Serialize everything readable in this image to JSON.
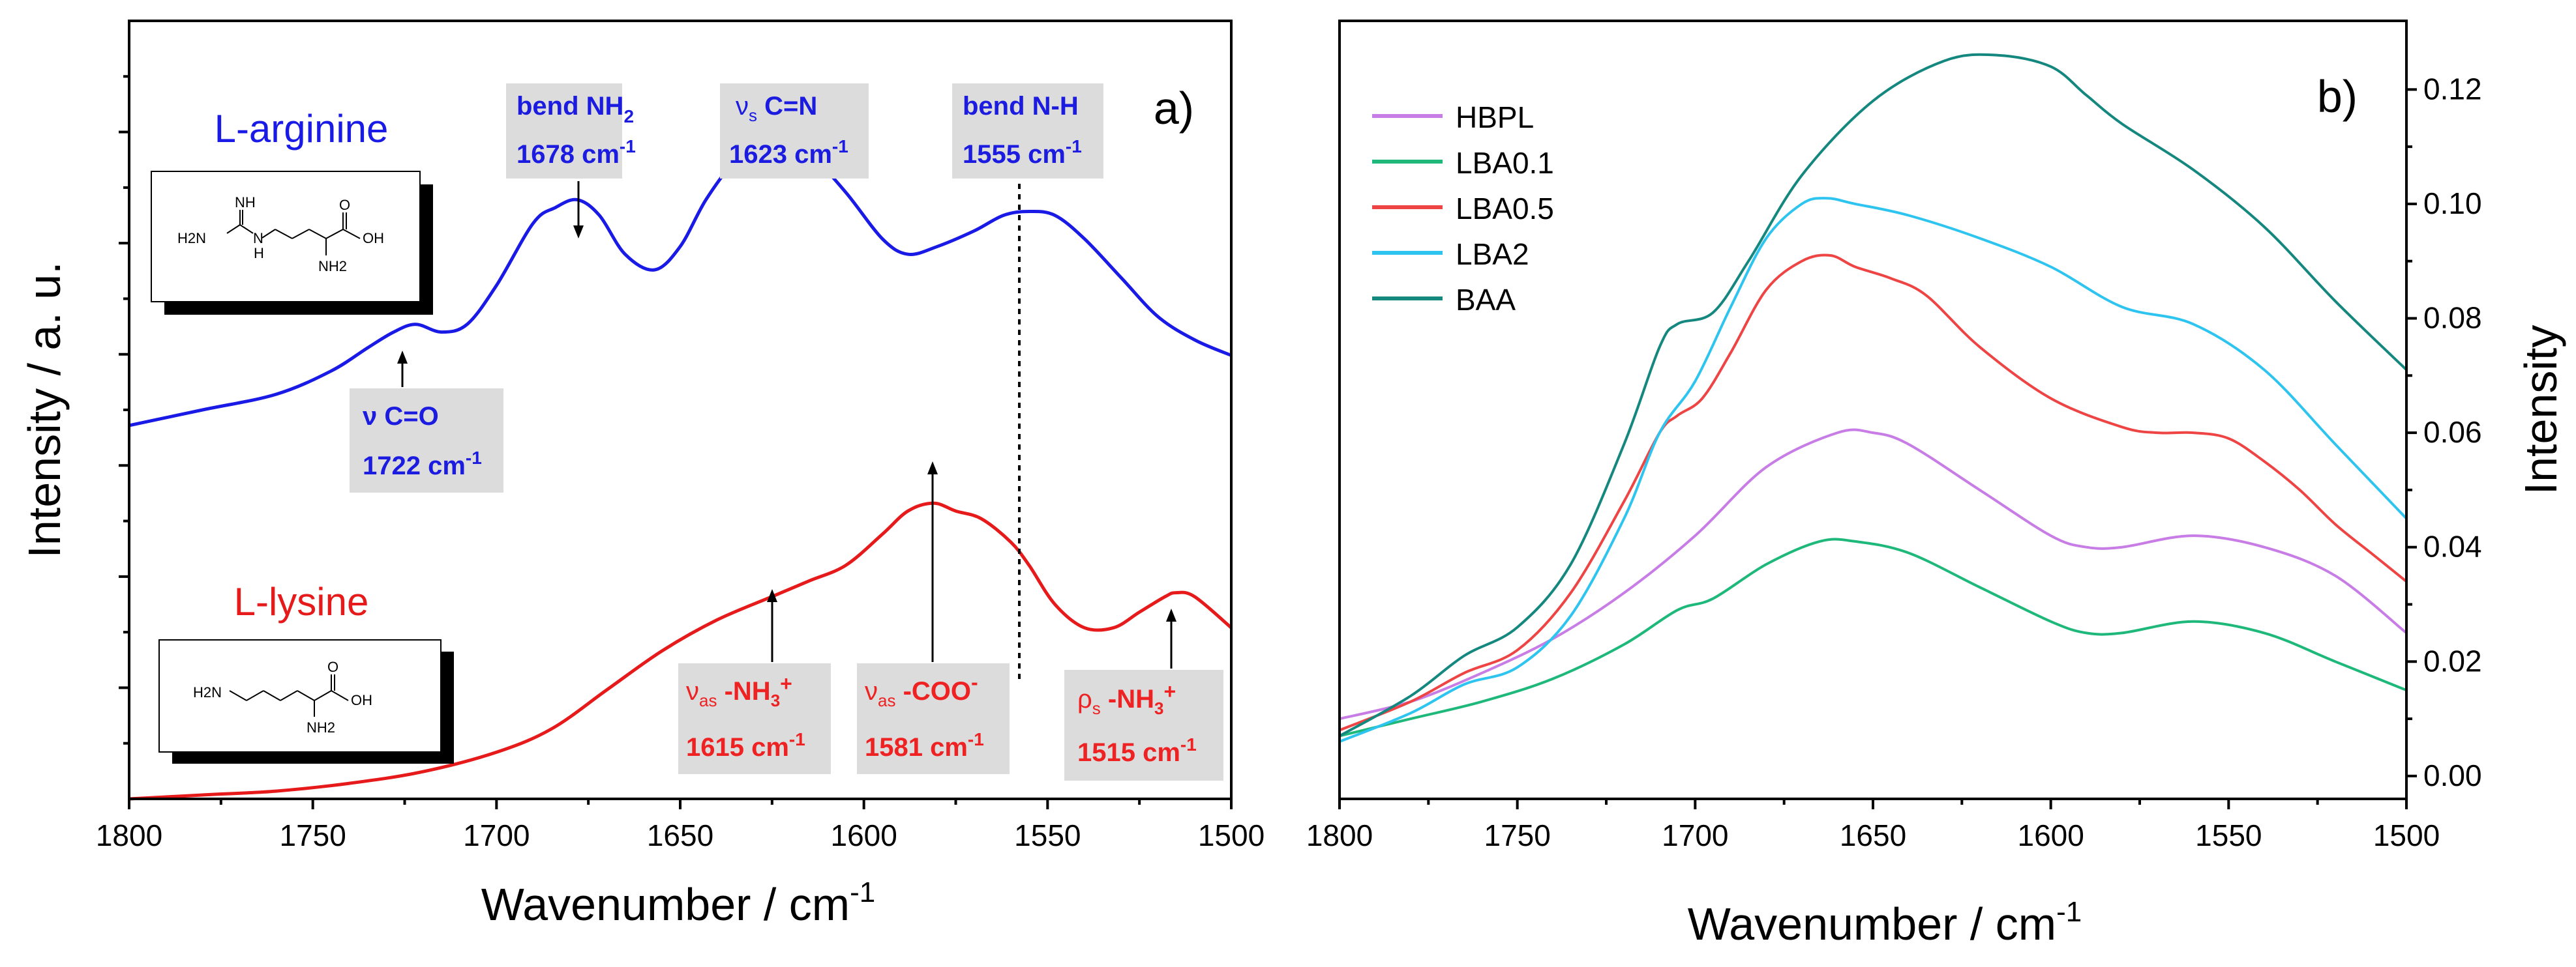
{
  "panel_a": {
    "label": "a)",
    "ylabel": "Intensity / a. u.",
    "xlabel": "Wavenumber / cm",
    "xlabel_sup": "-1",
    "compound_top": "L-arginine",
    "compound_bottom": "L-lysine",
    "colors": {
      "arginine": "#1a1ae6",
      "lysine": "#e61a1a"
    },
    "annotations_top": [
      {
        "line1": "bend NH",
        "sub": "2",
        "line2": "1678 cm",
        "sup2": "-1"
      },
      {
        "line1_pre": "ν",
        "line1_sub": "s",
        "line1": " C=N",
        "line2": "1623 cm",
        "sup2": "-1"
      },
      {
        "line1": "bend N-H",
        "line2": "1555 cm",
        "sup2": "-1"
      },
      {
        "line1": "ν C=O",
        "line2": "1722 cm",
        "sup2": "-1"
      }
    ],
    "annotations_bottom": [
      {
        "line1_pre": "ν",
        "line1_sub": "as",
        "line1": " -NH",
        "line1_sub2": "3",
        "line1_sup": "+",
        "line2": "1615 cm",
        "sup2": "-1"
      },
      {
        "line1_pre": "ν",
        "line1_sub": "as",
        "line1": " -COO",
        "line1_sup": "-",
        "line2": "1581 cm",
        "sup2": "-1"
      },
      {
        "line1_pre": "ρ",
        "line1_sub": "s",
        "line1": " -NH",
        "line1_sub2": "3",
        "line1_sup": "+",
        "line2": "1515 cm",
        "sup2": "-1"
      }
    ],
    "structure_labels": {
      "arg_nh": "NH",
      "arg_h2n": "H2N",
      "arg_n": "N",
      "arg_h": "H",
      "arg_o": "O",
      "arg_oh": "OH",
      "arg_nh2": "NH2",
      "lys_h2n": "H2N",
      "lys_o": "O",
      "lys_oh": "OH",
      "lys_nh2": "NH2"
    }
  },
  "panel_b": {
    "label": "b)",
    "ylabel": "Intensity",
    "xlabel": "Wavenumber / cm",
    "xlabel_sup": "-1"
  },
  "chart_data": [
    {
      "type": "line",
      "title": "a)",
      "xlabel": "Wavenumber / cm-1",
      "ylabel": "Intensity / a. u.",
      "xlim": [
        1800,
        1500
      ],
      "ylim": [
        0,
        1
      ],
      "xticks": [
        1800,
        1750,
        1700,
        1650,
        1600,
        1550,
        1500
      ],
      "series": [
        {
          "name": "L-arginine",
          "color": "#1a1ae6",
          "x": [
            1800,
            1780,
            1760,
            1745,
            1735,
            1728,
            1722,
            1715,
            1708,
            1700,
            1690,
            1684,
            1678,
            1672,
            1665,
            1657,
            1650,
            1643,
            1635,
            1628,
            1623,
            1615,
            1605,
            1595,
            1588,
            1580,
            1570,
            1562,
            1555,
            1548,
            1540,
            1530,
            1520,
            1510,
            1500
          ],
          "y": [
            0.48,
            0.5,
            0.52,
            0.55,
            0.58,
            0.6,
            0.61,
            0.6,
            0.61,
            0.66,
            0.74,
            0.76,
            0.77,
            0.75,
            0.7,
            0.68,
            0.71,
            0.77,
            0.82,
            0.84,
            0.845,
            0.83,
            0.78,
            0.72,
            0.7,
            0.71,
            0.73,
            0.75,
            0.755,
            0.75,
            0.72,
            0.67,
            0.62,
            0.59,
            0.57
          ]
        },
        {
          "name": "L-lysine",
          "color": "#e61a1a",
          "x": [
            1800,
            1780,
            1760,
            1740,
            1720,
            1700,
            1685,
            1670,
            1655,
            1640,
            1625,
            1615,
            1605,
            1595,
            1588,
            1581,
            1575,
            1568,
            1560,
            1555,
            1548,
            1540,
            1532,
            1525,
            1518,
            1515,
            1510,
            1500
          ],
          "y": [
            0.0,
            0.005,
            0.01,
            0.02,
            0.035,
            0.06,
            0.09,
            0.14,
            0.19,
            0.23,
            0.26,
            0.28,
            0.3,
            0.34,
            0.37,
            0.38,
            0.37,
            0.36,
            0.33,
            0.3,
            0.25,
            0.22,
            0.22,
            0.24,
            0.26,
            0.265,
            0.26,
            0.22
          ]
        }
      ]
    },
    {
      "type": "line",
      "title": "b)",
      "xlabel": "Wavenumber / cm-1",
      "ylabel": "Intensity",
      "xlim": [
        1800,
        1500
      ],
      "ylim": [
        -0.004,
        0.132
      ],
      "xticks": [
        1800,
        1750,
        1700,
        1650,
        1600,
        1550,
        1500
      ],
      "yticks": [
        0.0,
        0.02,
        0.04,
        0.06,
        0.08,
        0.1,
        0.12
      ],
      "legend": "top-left",
      "series": [
        {
          "name": "HBPL",
          "color": "#c77ce6",
          "x": [
            1800,
            1780,
            1760,
            1740,
            1720,
            1700,
            1680,
            1660,
            1650,
            1640,
            1620,
            1600,
            1590,
            1580,
            1560,
            1540,
            1520,
            1500
          ],
          "y": [
            0.01,
            0.013,
            0.018,
            0.024,
            0.032,
            0.042,
            0.054,
            0.06,
            0.06,
            0.058,
            0.05,
            0.042,
            0.04,
            0.04,
            0.042,
            0.04,
            0.035,
            0.025
          ]
        },
        {
          "name": "LBA0.1",
          "color": "#1db87a",
          "x": [
            1800,
            1780,
            1760,
            1740,
            1720,
            1705,
            1695,
            1680,
            1665,
            1655,
            1640,
            1620,
            1600,
            1590,
            1580,
            1560,
            1540,
            1520,
            1500
          ],
          "y": [
            0.007,
            0.01,
            0.013,
            0.017,
            0.023,
            0.029,
            0.031,
            0.037,
            0.041,
            0.041,
            0.039,
            0.033,
            0.027,
            0.025,
            0.025,
            0.027,
            0.025,
            0.02,
            0.015
          ]
        },
        {
          "name": "LBA0.5",
          "color": "#ee4444",
          "x": [
            1800,
            1780,
            1765,
            1750,
            1735,
            1720,
            1710,
            1705,
            1698,
            1690,
            1680,
            1670,
            1662,
            1655,
            1645,
            1635,
            1620,
            1600,
            1580,
            1570,
            1560,
            1550,
            1540,
            1530,
            1520,
            1510,
            1500
          ],
          "y": [
            0.008,
            0.013,
            0.018,
            0.022,
            0.032,
            0.048,
            0.06,
            0.063,
            0.066,
            0.074,
            0.085,
            0.09,
            0.091,
            0.089,
            0.087,
            0.084,
            0.075,
            0.066,
            0.061,
            0.06,
            0.06,
            0.059,
            0.055,
            0.05,
            0.044,
            0.039,
            0.034
          ]
        },
        {
          "name": "LBA2",
          "color": "#2ec4f0",
          "x": [
            1800,
            1780,
            1765,
            1750,
            1735,
            1720,
            1710,
            1700,
            1690,
            1680,
            1670,
            1663,
            1655,
            1640,
            1620,
            1600,
            1580,
            1560,
            1540,
            1520,
            1500
          ],
          "y": [
            0.006,
            0.011,
            0.016,
            0.019,
            0.028,
            0.045,
            0.06,
            0.069,
            0.082,
            0.094,
            0.1,
            0.101,
            0.1,
            0.098,
            0.094,
            0.089,
            0.082,
            0.079,
            0.071,
            0.058,
            0.045
          ]
        },
        {
          "name": "BAA",
          "color": "#14877f",
          "x": [
            1800,
            1780,
            1765,
            1750,
            1735,
            1720,
            1710,
            1705,
            1695,
            1685,
            1670,
            1650,
            1630,
            1615,
            1600,
            1590,
            1580,
            1560,
            1540,
            1520,
            1500
          ],
          "y": [
            0.007,
            0.014,
            0.021,
            0.026,
            0.037,
            0.058,
            0.075,
            0.079,
            0.081,
            0.09,
            0.105,
            0.118,
            0.125,
            0.126,
            0.124,
            0.119,
            0.114,
            0.106,
            0.096,
            0.083,
            0.071
          ]
        }
      ]
    }
  ]
}
